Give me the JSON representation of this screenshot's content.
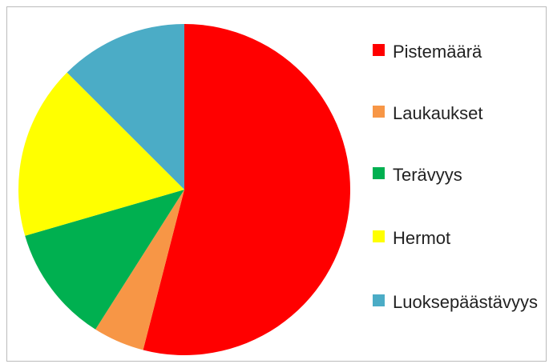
{
  "chart_data": {
    "type": "pie",
    "categories": [
      "Pistemäärä",
      "Laukaukset",
      "Terävyys",
      "Hermot",
      "Luoksepäästävyys"
    ],
    "values": [
      54,
      5,
      11.5,
      17,
      12.5
    ],
    "colors": [
      "#ff0000",
      "#f79646",
      "#00b050",
      "#ffff00",
      "#4bacc6"
    ]
  }
}
